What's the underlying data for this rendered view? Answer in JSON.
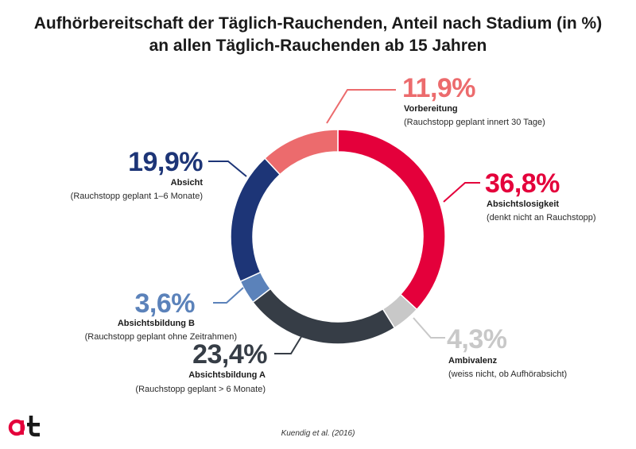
{
  "title_line1": "Aufhörbereitschaft der Täglich-Rauchenden, Anteil nach Stadium (in %)",
  "title_line2": "an allen Täglich-Rauchenden ab 15 Jahren",
  "source": "Kuendig et al. (2016)",
  "logo_text": "at",
  "colors": {
    "vorbereitung": "#ec6b6d",
    "absichtslosigkeit": "#e4003b",
    "ambivalenz": "#c8c8c8",
    "absichtsbildung_a": "#363d46",
    "absichtsbildung_b": "#5b82ba",
    "absicht": "#1d3577"
  },
  "chart_data": {
    "type": "pie",
    "donut": true,
    "title": "Aufhörbereitschaft der Täglich-Rauchenden, Anteil nach Stadium (in %) an allen Täglich-Rauchenden ab 15 Jahren",
    "unit": "%",
    "slices": [
      {
        "key": "absichtslosigkeit",
        "value": 36.8,
        "value_label": "36,8%",
        "label": "Absichtslosigkeit",
        "description": "(denkt nicht an Rauchstopp)",
        "color": "#e4003b"
      },
      {
        "key": "ambivalenz",
        "value": 4.3,
        "value_label": "4,3%",
        "label": "Ambivalenz",
        "description": "(weiss nicht, ob Aufhörabsicht)",
        "color": "#c8c8c8"
      },
      {
        "key": "absichtsbildung_a",
        "value": 23.4,
        "value_label": "23,4%",
        "label": "Absichtsbildung A",
        "description": "(Rauchstopp geplant > 6 Monate)",
        "color": "#363d46"
      },
      {
        "key": "absichtsbildung_b",
        "value": 3.6,
        "value_label": "3,6%",
        "label": "Absichtsbildung B",
        "description": "(Rauchstopp geplant ohne Zeitrahmen)",
        "color": "#5b82ba"
      },
      {
        "key": "absicht",
        "value": 19.9,
        "value_label": "19,9%",
        "label": "Absicht",
        "description": "(Rauchstopp geplant 1–6 Monate)",
        "color": "#1d3577"
      },
      {
        "key": "vorbereitung",
        "value": 11.9,
        "value_label": "11,9%",
        "label": "Vorbereitung",
        "description": "(Rauchstopp geplant innert 30 Tage)",
        "color": "#ec6b6d"
      }
    ]
  }
}
